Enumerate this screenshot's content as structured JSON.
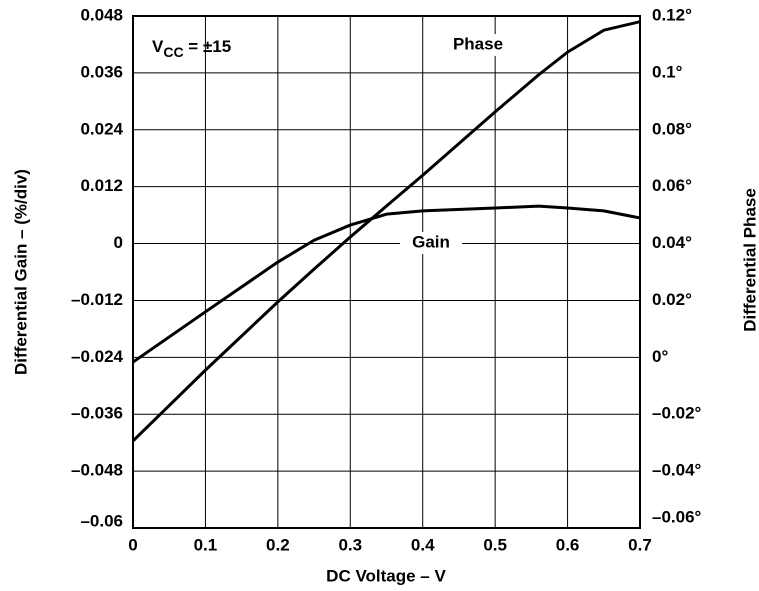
{
  "chart_data": {
    "type": "line",
    "xlabel": "DC Voltage – V",
    "ylabel": "Differential Gain – (%/div)",
    "y2label": "Differential Phase",
    "annotation": {
      "base": "V",
      "subscript": "CC",
      "text": " = ±15"
    },
    "x": [
      0,
      0.1,
      0.2,
      0.25,
      0.3,
      0.35,
      0.4,
      0.5,
      0.56,
      0.6,
      0.65,
      0.7
    ],
    "series": [
      {
        "name": "Gain",
        "color": "#000000",
        "axis": "y",
        "values": [
          -0.025,
          -0.0144,
          -0.0039,
          0.0007,
          0.0039,
          0.0062,
          0.0069,
          0.0075,
          0.0079,
          0.0075,
          0.0069,
          0.0054
        ]
      },
      {
        "name": "Phase",
        "color": "#000000",
        "axis": "y2",
        "values": [
          -0.0294,
          -0.0045,
          0.0195,
          0.031,
          0.0423,
          0.0532,
          0.064,
          0.0863,
          0.0993,
          0.1073,
          0.115,
          0.118
        ]
      }
    ],
    "xlim": [
      0,
      0.7
    ],
    "xticks": [
      0,
      0.1,
      0.2,
      0.3,
      0.4,
      0.5,
      0.6,
      0.7
    ],
    "ylim": [
      -0.06,
      0.048
    ],
    "yticks": [
      {
        "value": -0.06,
        "label": "–0.06"
      },
      {
        "value": -0.048,
        "label": "–0.048"
      },
      {
        "value": -0.036,
        "label": "–0.036"
      },
      {
        "value": -0.024,
        "label": "–0.024"
      },
      {
        "value": -0.012,
        "label": "–0.012"
      },
      0,
      0.012,
      0.024,
      0.036,
      0.048
    ],
    "y2lim": [
      -0.06,
      0.12
    ],
    "y2ticks": [
      {
        "value": -0.06,
        "label": "–0.06°"
      },
      {
        "value": -0.04,
        "label": "–0.04°"
      },
      {
        "value": -0.02,
        "label": "–0.02°"
      },
      {
        "value": 0,
        "label": "0°"
      },
      {
        "value": 0.02,
        "label": "0.02°"
      },
      {
        "value": 0.04,
        "label": "0.04°"
      },
      {
        "value": 0.06,
        "label": "0.06°"
      },
      {
        "value": 0.08,
        "label": "0.08°"
      },
      {
        "value": 0.1,
        "label": "0.1°"
      },
      {
        "value": 0.12,
        "label": "0.12°"
      }
    ],
    "grid": true
  }
}
